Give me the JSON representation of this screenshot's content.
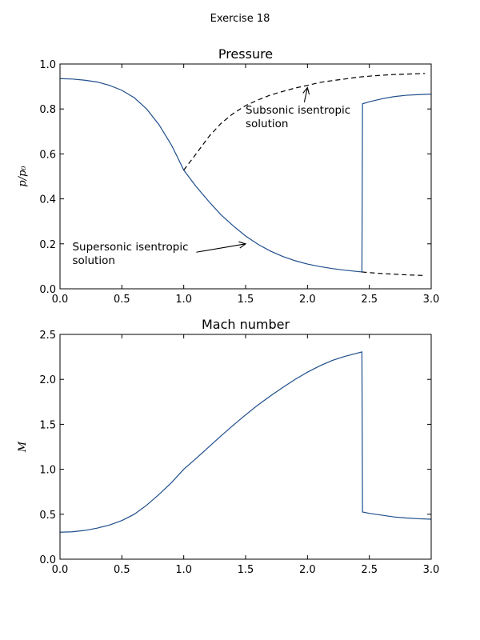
{
  "figure": {
    "suptitle": "Exercise 18",
    "line_color": "#1f4e8c",
    "dash_color": "#000000"
  },
  "chart_data": [
    {
      "type": "line",
      "title": "Pressure",
      "xlabel": "",
      "ylabel": "p/p₀",
      "xlim": [
        0,
        3
      ],
      "ylim": [
        0,
        1
      ],
      "xticks": [
        "0.0",
        "0.5",
        "1.0",
        "1.5",
        "2.0",
        "2.5",
        "3.0"
      ],
      "yticks": [
        "0.0",
        "0.2",
        "0.4",
        "0.6",
        "0.8",
        "1.0"
      ],
      "grid": false,
      "series": [
        {
          "style": "solid",
          "x": [
            0.0,
            0.1,
            0.2,
            0.3,
            0.4,
            0.5,
            0.6,
            0.7,
            0.8,
            0.9,
            0.95,
            1.0,
            1.1,
            1.2,
            1.3,
            1.4,
            1.5,
            1.6,
            1.7,
            1.8,
            1.9,
            2.0,
            2.1,
            2.2,
            2.3,
            2.44,
            2.445,
            2.5,
            2.6,
            2.7,
            2.8,
            2.9,
            3.0
          ],
          "y": [
            0.935,
            0.933,
            0.928,
            0.92,
            0.905,
            0.883,
            0.85,
            0.8,
            0.73,
            0.64,
            0.585,
            0.528,
            0.455,
            0.39,
            0.33,
            0.28,
            0.235,
            0.198,
            0.168,
            0.144,
            0.125,
            0.11,
            0.099,
            0.09,
            0.083,
            0.075,
            0.823,
            0.832,
            0.845,
            0.855,
            0.861,
            0.864,
            0.866
          ]
        },
        {
          "style": "dashed",
          "x": [
            1.0,
            1.1,
            1.2,
            1.3,
            1.4,
            1.5,
            1.6,
            1.7,
            1.8,
            1.9,
            2.0,
            2.1,
            2.2,
            2.3,
            2.4,
            2.5,
            2.6,
            2.7,
            2.8,
            2.9,
            2.95
          ],
          "y": [
            0.528,
            0.6,
            0.675,
            0.735,
            0.78,
            0.815,
            0.84,
            0.862,
            0.878,
            0.893,
            0.905,
            0.918,
            0.926,
            0.933,
            0.941,
            0.946,
            0.95,
            0.953,
            0.955,
            0.957,
            0.958
          ]
        },
        {
          "style": "dashed",
          "x": [
            2.44,
            2.5,
            2.6,
            2.7,
            2.8,
            2.9,
            2.95
          ],
          "y": [
            0.075,
            0.072,
            0.068,
            0.065,
            0.062,
            0.06,
            0.059
          ]
        }
      ],
      "annotations": [
        {
          "lines": [
            "Subsonic isentropic",
            "solution"
          ],
          "text_xy": [
            1.5,
            0.78
          ],
          "arrow_to": [
            2.0,
            0.895
          ]
        },
        {
          "lines": [
            "Supersonic isentropic",
            "solution"
          ],
          "text_xy": [
            0.1,
            0.17
          ],
          "arrow_to": [
            1.5,
            0.2
          ]
        }
      ]
    },
    {
      "type": "line",
      "title": "Mach number",
      "xlabel": "",
      "ylabel": "M",
      "xlim": [
        0,
        3
      ],
      "ylim": [
        0,
        2.5
      ],
      "xticks": [
        "0.0",
        "0.5",
        "1.0",
        "1.5",
        "2.0",
        "2.5",
        "3.0"
      ],
      "yticks": [
        "0.0",
        "0.5",
        "1.0",
        "1.5",
        "2.0",
        "2.5"
      ],
      "grid": false,
      "series": [
        {
          "style": "solid",
          "x": [
            0.0,
            0.1,
            0.2,
            0.3,
            0.4,
            0.5,
            0.6,
            0.7,
            0.8,
            0.9,
            1.0,
            1.1,
            1.2,
            1.3,
            1.4,
            1.5,
            1.6,
            1.7,
            1.8,
            1.9,
            2.0,
            2.1,
            2.2,
            2.3,
            2.44,
            2.445,
            2.5,
            2.6,
            2.7,
            2.8,
            2.9,
            3.0
          ],
          "y": [
            0.3,
            0.305,
            0.32,
            0.345,
            0.38,
            0.43,
            0.5,
            0.6,
            0.72,
            0.85,
            1.0,
            1.12,
            1.245,
            1.37,
            1.49,
            1.605,
            1.715,
            1.815,
            1.91,
            2.0,
            2.08,
            2.15,
            2.21,
            2.255,
            2.305,
            0.525,
            0.51,
            0.49,
            0.47,
            0.458,
            0.45,
            0.445
          ]
        }
      ],
      "annotations": []
    }
  ]
}
